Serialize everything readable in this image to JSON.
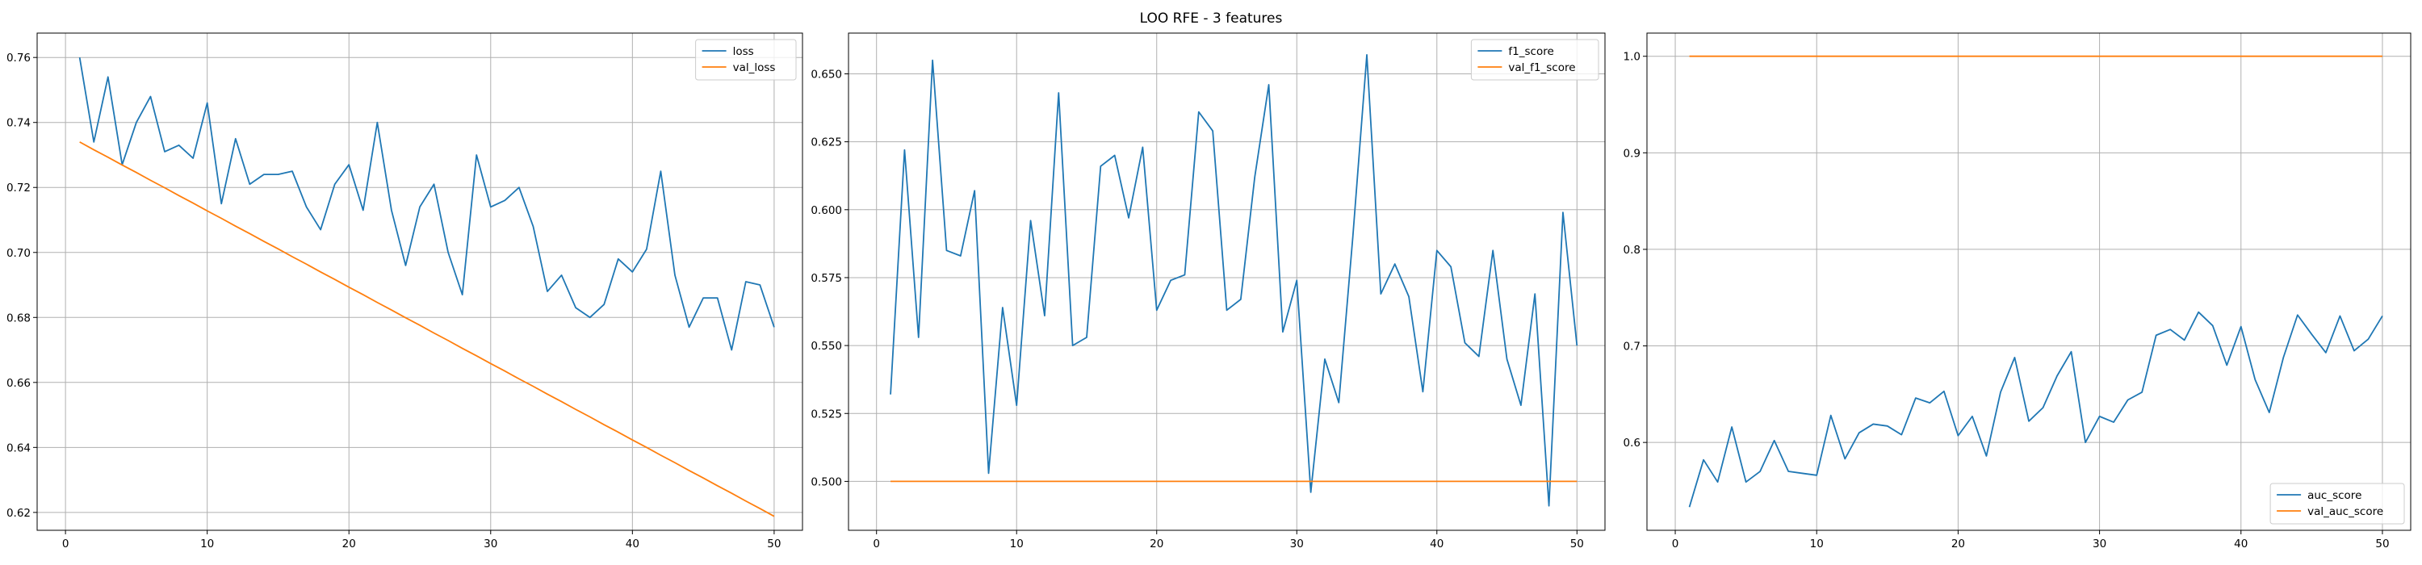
{
  "figure": {
    "title": "LOO RFE - 3 features"
  },
  "colors": {
    "blue": "#1f77b4",
    "orange": "#ff7f0e"
  },
  "chart_data": [
    {
      "type": "line",
      "title": "",
      "xlabel": "",
      "ylabel": "",
      "xlim": [
        -2,
        52
      ],
      "ylim": [
        0.6145,
        0.7675
      ],
      "xticks": [
        0,
        10,
        20,
        30,
        40,
        50
      ],
      "yticks": [
        0.62,
        0.64,
        0.66,
        0.68,
        0.7,
        0.72,
        0.74,
        0.76
      ],
      "ytick_labels": [
        "0.62",
        "0.64",
        "0.66",
        "0.68",
        "0.70",
        "0.72",
        "0.74",
        "0.76"
      ],
      "grid": true,
      "legend_position": "top-right",
      "x": [
        1,
        2,
        3,
        4,
        5,
        6,
        7,
        8,
        9,
        10,
        11,
        12,
        13,
        14,
        15,
        16,
        17,
        18,
        19,
        20,
        21,
        22,
        23,
        24,
        25,
        26,
        27,
        28,
        29,
        30,
        31,
        32,
        33,
        34,
        35,
        36,
        37,
        38,
        39,
        40,
        41,
        42,
        43,
        44,
        45,
        46,
        47,
        48,
        49,
        50
      ],
      "series": [
        {
          "name": "loss",
          "color": "#1f77b4",
          "values": [
            0.76,
            0.734,
            0.754,
            0.727,
            0.74,
            0.748,
            0.731,
            0.733,
            0.729,
            0.746,
            0.715,
            0.735,
            0.721,
            0.724,
            0.724,
            0.725,
            0.714,
            0.707,
            0.721,
            0.727,
            0.713,
            0.74,
            0.713,
            0.696,
            0.714,
            0.721,
            0.7,
            0.687,
            0.73,
            0.714,
            0.716,
            0.72,
            0.708,
            0.688,
            0.693,
            0.683,
            0.68,
            0.684,
            0.698,
            0.694,
            0.701,
            0.725,
            0.693,
            0.677,
            0.686,
            0.686,
            0.67,
            0.691,
            0.69,
            0.677
          ]
        },
        {
          "name": "val_loss",
          "color": "#ff7f0e",
          "values": [
            0.734,
            0.7316,
            0.7293,
            0.7269,
            0.7246,
            0.7222,
            0.7199,
            0.7175,
            0.7152,
            0.7128,
            0.7105,
            0.7081,
            0.7058,
            0.7034,
            0.7011,
            0.6987,
            0.6964,
            0.694,
            0.6917,
            0.6893,
            0.687,
            0.6846,
            0.6823,
            0.6799,
            0.6776,
            0.6752,
            0.6729,
            0.6705,
            0.6682,
            0.6658,
            0.6635,
            0.6611,
            0.6588,
            0.6564,
            0.6541,
            0.6517,
            0.6494,
            0.647,
            0.6447,
            0.6423,
            0.64,
            0.6376,
            0.6353,
            0.6329,
            0.6306,
            0.6282,
            0.6259,
            0.6235,
            0.6212,
            0.6188
          ]
        }
      ]
    },
    {
      "type": "line",
      "title": "",
      "xlabel": "",
      "ylabel": "",
      "xlim": [
        -2,
        52
      ],
      "ylim": [
        0.482,
        0.665
      ],
      "xticks": [
        0,
        10,
        20,
        30,
        40,
        50
      ],
      "yticks": [
        0.5,
        0.525,
        0.55,
        0.575,
        0.6,
        0.625,
        0.65
      ],
      "ytick_labels": [
        "0.500",
        "0.525",
        "0.550",
        "0.575",
        "0.600",
        "0.625",
        "0.650"
      ],
      "grid": true,
      "legend_position": "top-right",
      "x": [
        1,
        2,
        3,
        4,
        5,
        6,
        7,
        8,
        9,
        10,
        11,
        12,
        13,
        14,
        15,
        16,
        17,
        18,
        19,
        20,
        21,
        22,
        23,
        24,
        25,
        26,
        27,
        28,
        29,
        30,
        31,
        32,
        33,
        34,
        35,
        36,
        37,
        38,
        39,
        40,
        41,
        42,
        43,
        44,
        45,
        46,
        47,
        48,
        49,
        50
      ],
      "series": [
        {
          "name": "f1_score",
          "color": "#1f77b4",
          "values": [
            0.532,
            0.622,
            0.553,
            0.655,
            0.585,
            0.583,
            0.607,
            0.503,
            0.564,
            0.528,
            0.596,
            0.561,
            0.643,
            0.55,
            0.553,
            0.616,
            0.62,
            0.597,
            0.623,
            0.563,
            0.574,
            0.576,
            0.636,
            0.629,
            0.563,
            0.567,
            0.612,
            0.646,
            0.555,
            0.574,
            0.496,
            0.545,
            0.529,
            0.59,
            0.657,
            0.569,
            0.58,
            0.568,
            0.533,
            0.585,
            0.579,
            0.551,
            0.546,
            0.585,
            0.545,
            0.528,
            0.569,
            0.491,
            0.599,
            0.55
          ]
        },
        {
          "name": "val_f1_score",
          "color": "#ff7f0e",
          "values": [
            0.5,
            0.5,
            0.5,
            0.5,
            0.5,
            0.5,
            0.5,
            0.5,
            0.5,
            0.5,
            0.5,
            0.5,
            0.5,
            0.5,
            0.5,
            0.5,
            0.5,
            0.5,
            0.5,
            0.5,
            0.5,
            0.5,
            0.5,
            0.5,
            0.5,
            0.5,
            0.5,
            0.5,
            0.5,
            0.5,
            0.5,
            0.5,
            0.5,
            0.5,
            0.5,
            0.5,
            0.5,
            0.5,
            0.5,
            0.5,
            0.5,
            0.5,
            0.5,
            0.5,
            0.5,
            0.5,
            0.5,
            0.5,
            0.5,
            0.5
          ]
        }
      ]
    },
    {
      "type": "line",
      "title": "",
      "xlabel": "",
      "ylabel": "",
      "xlim": [
        -2,
        52
      ],
      "ylim": [
        0.509,
        1.024
      ],
      "xticks": [
        0,
        10,
        20,
        30,
        40,
        50
      ],
      "yticks": [
        0.6,
        0.7,
        0.8,
        0.9,
        1.0
      ],
      "ytick_labels": [
        "0.6",
        "0.7",
        "0.8",
        "0.9",
        "1.0"
      ],
      "grid": true,
      "legend_position": "bottom-right",
      "x": [
        1,
        2,
        3,
        4,
        5,
        6,
        7,
        8,
        9,
        10,
        11,
        12,
        13,
        14,
        15,
        16,
        17,
        18,
        19,
        20,
        21,
        22,
        23,
        24,
        25,
        26,
        27,
        28,
        29,
        30,
        31,
        32,
        33,
        34,
        35,
        36,
        37,
        38,
        39,
        40,
        41,
        42,
        43,
        44,
        45,
        46,
        47,
        48,
        49,
        50
      ],
      "series": [
        {
          "name": "auc_score",
          "color": "#1f77b4",
          "values": [
            0.533,
            0.582,
            0.559,
            0.616,
            0.559,
            0.57,
            0.602,
            0.57,
            0.568,
            0.566,
            0.628,
            0.583,
            0.61,
            0.619,
            0.617,
            0.608,
            0.646,
            0.641,
            0.653,
            0.607,
            0.627,
            0.586,
            0.652,
            0.688,
            0.622,
            0.636,
            0.669,
            0.694,
            0.6,
            0.627,
            0.621,
            0.644,
            0.652,
            0.711,
            0.717,
            0.706,
            0.735,
            0.721,
            0.68,
            0.72,
            0.665,
            0.631,
            0.688,
            0.732,
            0.712,
            0.693,
            0.731,
            0.695,
            0.707,
            0.731
          ]
        },
        {
          "name": "val_auc_score",
          "color": "#ff7f0e",
          "values": [
            1.0,
            1.0,
            1.0,
            1.0,
            1.0,
            1.0,
            1.0,
            1.0,
            1.0,
            1.0,
            1.0,
            1.0,
            1.0,
            1.0,
            1.0,
            1.0,
            1.0,
            1.0,
            1.0,
            1.0,
            1.0,
            1.0,
            1.0,
            1.0,
            1.0,
            1.0,
            1.0,
            1.0,
            1.0,
            1.0,
            1.0,
            1.0,
            1.0,
            1.0,
            1.0,
            1.0,
            1.0,
            1.0,
            1.0,
            1.0,
            1.0,
            1.0,
            1.0,
            1.0,
            1.0,
            1.0,
            1.0,
            1.0,
            1.0,
            1.0
          ]
        }
      ]
    }
  ]
}
